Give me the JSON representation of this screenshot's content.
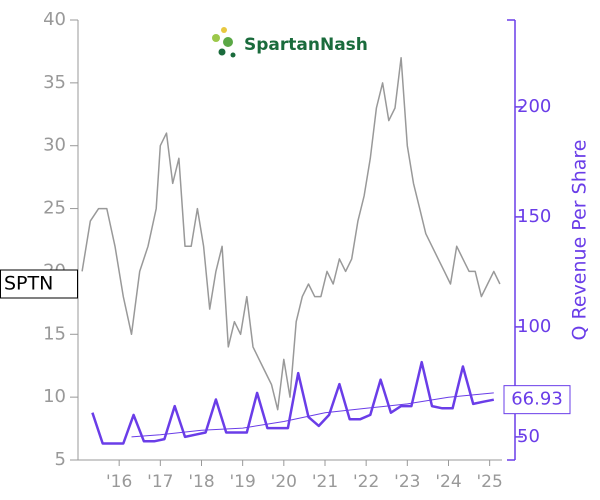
{
  "chart_data": {
    "type": "line",
    "logo_text": "SpartanNash",
    "ylabel": "SPTN",
    "y2label": "Q Revenue Per Share",
    "xlim": [
      2015.0,
      2025.3
    ],
    "xticks": [
      {
        "value": 2016,
        "label": "'16"
      },
      {
        "value": 2017,
        "label": "'17"
      },
      {
        "value": 2018,
        "label": "'18"
      },
      {
        "value": 2019,
        "label": "'19"
      },
      {
        "value": 2020,
        "label": "'20"
      },
      {
        "value": 2021,
        "label": "'21"
      },
      {
        "value": 2022,
        "label": "'22"
      },
      {
        "value": 2023,
        "label": "'23"
      },
      {
        "value": 2024,
        "label": "'24"
      },
      {
        "value": 2025,
        "label": "'25"
      }
    ],
    "ylim": [
      5,
      40
    ],
    "yticks": [
      5,
      10,
      15,
      20,
      25,
      30,
      35,
      40
    ],
    "y2lim": [
      39.5,
      239.5
    ],
    "y2ticks": [
      50,
      100,
      150,
      200
    ],
    "axis_color": "#999999",
    "axis2_color": "#6a3de8",
    "series": [
      {
        "color": "#999999",
        "width": 1.5,
        "axis": "y",
        "x": [
          2015.1,
          2015.3,
          2015.5,
          2015.7,
          2015.9,
          2016.1,
          2016.3,
          2016.5,
          2016.7,
          2016.9,
          2017.0,
          2017.15,
          2017.3,
          2017.45,
          2017.6,
          2017.75,
          2017.9,
          2018.05,
          2018.2,
          2018.35,
          2018.5,
          2018.65,
          2018.8,
          2018.95,
          2019.1,
          2019.25,
          2019.4,
          2019.55,
          2019.7,
          2019.85,
          2020.0,
          2020.15,
          2020.3,
          2020.45,
          2020.6,
          2020.75,
          2020.9,
          2021.05,
          2021.2,
          2021.35,
          2021.5,
          2021.65,
          2021.8,
          2021.95,
          2022.1,
          2022.25,
          2022.4,
          2022.55,
          2022.7,
          2022.85,
          2023.0,
          2023.15,
          2023.3,
          2023.45,
          2023.6,
          2023.75,
          2023.9,
          2024.05,
          2024.2,
          2024.35,
          2024.5,
          2024.65,
          2024.8,
          2024.95,
          2025.1,
          2025.25
        ],
        "values": [
          20,
          24,
          25,
          25,
          22,
          18,
          15,
          20,
          22,
          25,
          30,
          31,
          27,
          29,
          22,
          22,
          25,
          22,
          17,
          20,
          22,
          14,
          16,
          15,
          18,
          14,
          13,
          12,
          11,
          9,
          13,
          10,
          16,
          18,
          19,
          18,
          18,
          20,
          19,
          21,
          20,
          21,
          24,
          26,
          29,
          33,
          35,
          32,
          33,
          37,
          30,
          27,
          25,
          23,
          22,
          21,
          20,
          19,
          22,
          21,
          20,
          20,
          18,
          19,
          20,
          19
        ]
      },
      {
        "color": "#6a3de8",
        "width": 2.5,
        "axis": "y2",
        "x": [
          2015.35,
          2015.6,
          2015.85,
          2016.1,
          2016.35,
          2016.6,
          2016.85,
          2017.1,
          2017.35,
          2017.6,
          2017.85,
          2018.1,
          2018.35,
          2018.6,
          2018.85,
          2019.1,
          2019.35,
          2019.6,
          2019.85,
          2020.1,
          2020.35,
          2020.6,
          2020.85,
          2021.1,
          2021.35,
          2021.6,
          2021.85,
          2022.1,
          2022.35,
          2022.6,
          2022.85,
          2023.1,
          2023.35,
          2023.6,
          2023.85,
          2024.1,
          2024.35,
          2024.6,
          2024.85,
          2025.1
        ],
        "values": [
          61,
          47,
          47,
          47,
          60,
          48,
          48,
          49,
          64,
          50,
          51,
          52,
          67,
          52,
          52,
          52,
          70,
          54,
          54,
          54,
          79,
          59,
          55,
          60,
          74,
          58,
          58,
          60,
          76,
          61,
          64,
          64,
          84,
          64,
          63,
          63,
          82,
          65,
          66,
          66.93
        ]
      },
      {
        "color": "#6a3de8",
        "width": 1,
        "axis": "y2",
        "x": [
          2016.3,
          2017.0,
          2018.0,
          2019.0,
          2020.0,
          2021.0,
          2022.0,
          2023.0,
          2024.0,
          2025.1
        ],
        "values": [
          50,
          51,
          53,
          54,
          57,
          61,
          63,
          65,
          68,
          70
        ]
      }
    ]
  }
}
